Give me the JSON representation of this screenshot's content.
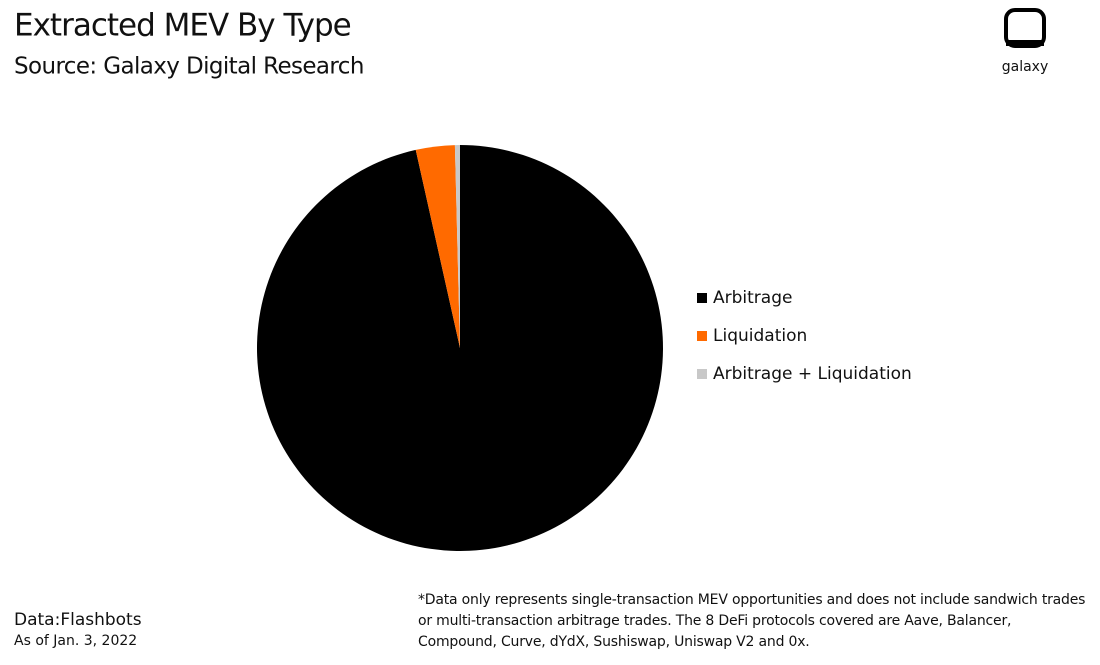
{
  "chart_data": {
    "type": "pie",
    "title": "Extracted MEV By Type",
    "subtitle": "Source: Galaxy Digital Research",
    "logo": "galaxy",
    "categories": [
      "Arbitrage",
      "Liquidation",
      "Arbitrage + Liquidation"
    ],
    "values": [
      96.5,
      3.1,
      0.4
    ],
    "colors": [
      "#000000",
      "#ff6a00",
      "#c8c8c8"
    ],
    "legend": "right",
    "source": "Data:Flashbots",
    "date": "As of Jan. 3, 2022",
    "note": "*Data only represents single-transaction MEV opportunities and does not include sandwich trades or multi-transaction arbitrage trades. The 8 DeFi protocols covered are Aave, Balancer, Compound, Curve, dYdX, Sushiswap, Uniswap V2 and 0x."
  }
}
